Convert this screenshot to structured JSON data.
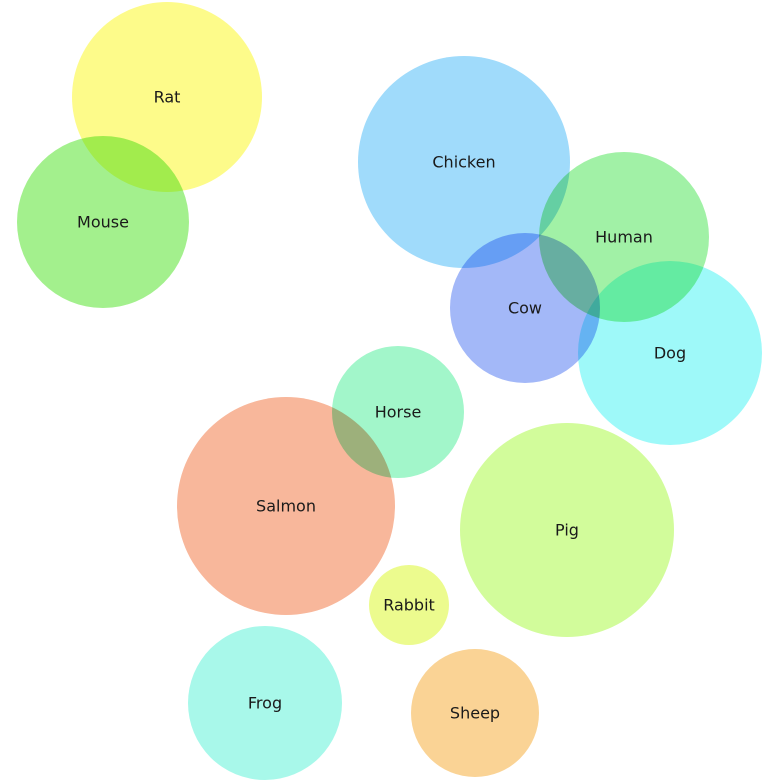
{
  "chart_data": {
    "type": "bubble",
    "title": "",
    "legend": "none",
    "grid": false,
    "bubbles": [
      {
        "label": "Rat",
        "color": "#FDFB8A"
      },
      {
        "label": "Mouse",
        "color": "#A3F08D"
      },
      {
        "label": "Chicken",
        "color": "#A0DBFB"
      },
      {
        "label": "Human",
        "color": "#A1F1A6"
      },
      {
        "label": "Cow",
        "color": "#A3B8F8"
      },
      {
        "label": "Dog",
        "color": "#9EF9F9"
      },
      {
        "label": "Horse",
        "color": "#A2F6CA"
      },
      {
        "label": "Salmon",
        "color": "#F8B79B"
      },
      {
        "label": "Pig",
        "color": "#D2FC9B"
      },
      {
        "label": "Rabbit",
        "color": "#ECFB8E"
      },
      {
        "label": "Frog",
        "color": "#A8F8EA"
      },
      {
        "label": "Sheep",
        "color": "#FAD395"
      }
    ]
  }
}
